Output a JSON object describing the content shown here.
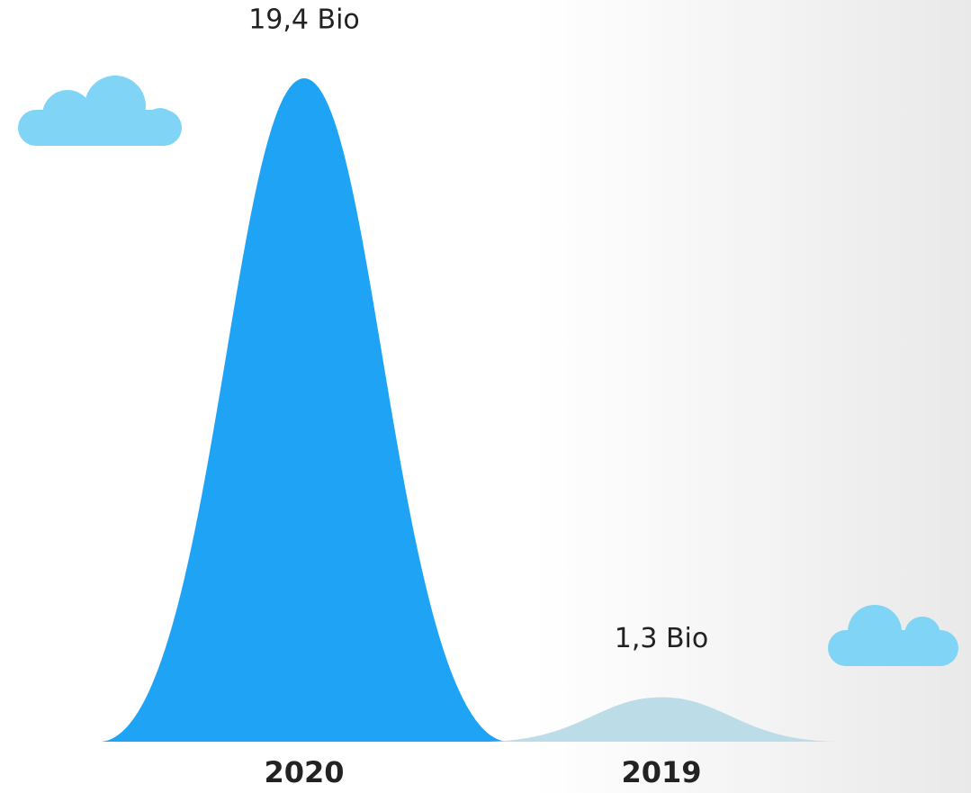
{
  "chart_data": {
    "type": "bell",
    "categories": [
      "2020",
      "2019"
    ],
    "values": [
      19.4,
      1.3
    ],
    "value_labels": [
      "19,4 Bio",
      "1,3 Bio"
    ],
    "colors": [
      "#1fa3f5",
      "#bcdde8"
    ]
  }
}
